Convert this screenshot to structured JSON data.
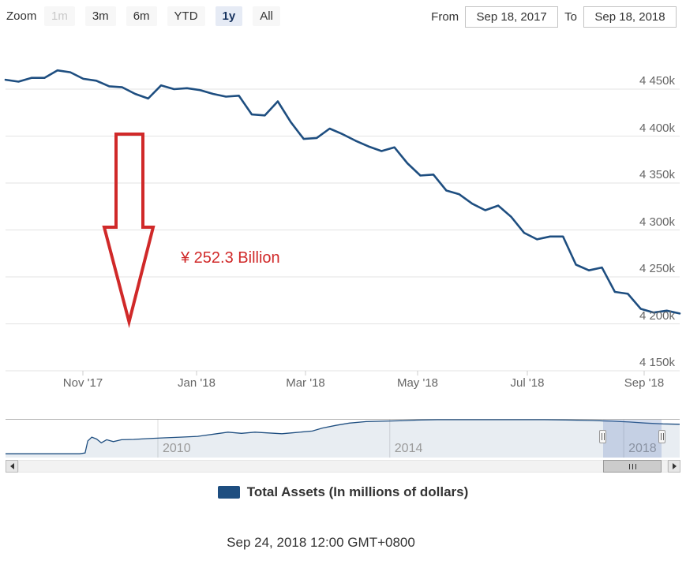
{
  "toolbar": {
    "zoom_label": "Zoom",
    "buttons": [
      {
        "label": "1m",
        "state": "disabled"
      },
      {
        "label": "3m",
        "state": "normal"
      },
      {
        "label": "6m",
        "state": "normal"
      },
      {
        "label": "YTD",
        "state": "normal"
      },
      {
        "label": "1y",
        "state": "selected"
      },
      {
        "label": "All",
        "state": "normal"
      }
    ],
    "from_label": "From",
    "from_value": "Sep 18, 2017",
    "to_label": "To",
    "to_value": "Sep 18, 2018"
  },
  "annotation": {
    "text": "¥ 252.3 Billion",
    "arrow": "red-down-arrow"
  },
  "legend": {
    "label": "Total Assets (In millions of dollars)"
  },
  "footer": {
    "timestamp": "Sep 24, 2018 12:00 GMT+0800"
  },
  "colors": {
    "series": "#1e4e80",
    "navigator_fill": "rgba(30,78,128,0.10)",
    "grid": "#e3e3e3",
    "tick": "#cccccc",
    "nav_border": "#b0b0b0",
    "nav_grid": "#dddddd",
    "annotation_red": "#d02929",
    "axis_text": "#666666",
    "nav_text": "#9a9a9a"
  },
  "chart_data": [
    {
      "type": "line",
      "role": "main",
      "series_name": "Total Assets (In millions of dollars)",
      "x_start": "2017-09-18",
      "x_end": "2018-09-18",
      "interval": "weekly",
      "unit": "values in k (thousands) of millions of dollars, as labeled on y-axis",
      "y_tick_labels": [
        "4 450k",
        "4 400k",
        "4 350k",
        "4 300k",
        "4 250k",
        "4 200k",
        "4 150k"
      ],
      "y_tick_values": [
        4450,
        4400,
        4350,
        4300,
        4250,
        4200,
        4150
      ],
      "ylim": [
        4150,
        4507
      ],
      "x_tick_labels": [
        "Nov '17",
        "Jan '18",
        "Mar '18",
        "May '18",
        "Jul '18",
        "Sep '18"
      ],
      "grid": true,
      "values": [
        4460,
        4458,
        4462,
        4462,
        4470,
        4468,
        4461,
        4459,
        4453,
        4452,
        4445,
        4440,
        4454,
        4450,
        4451,
        4449,
        4445,
        4442,
        4443,
        4423,
        4422,
        4437,
        4415,
        4397,
        4398,
        4408,
        4402,
        4395,
        4389,
        4384,
        4388,
        4371,
        4358,
        4359,
        4342,
        4338,
        4328,
        4321,
        4326,
        4314,
        4297,
        4290,
        4293,
        4293,
        4263,
        4257,
        4260,
        4234,
        4232,
        4216,
        4212,
        4214,
        4211
      ]
    },
    {
      "type": "area",
      "role": "navigator",
      "x_tick_labels": [
        "2010",
        "2014",
        "2018"
      ],
      "x_tick_positions": [
        0.226,
        0.57,
        0.917
      ],
      "unit": "relative height 0-100 (navigator overview of full history, no y-axis shown)",
      "points": [
        [
          0.0,
          10
        ],
        [
          0.11,
          10
        ],
        [
          0.118,
          12
        ],
        [
          0.122,
          44
        ],
        [
          0.128,
          54
        ],
        [
          0.135,
          49
        ],
        [
          0.142,
          39
        ],
        [
          0.15,
          47
        ],
        [
          0.16,
          42
        ],
        [
          0.172,
          47
        ],
        [
          0.19,
          48
        ],
        [
          0.21,
          50
        ],
        [
          0.235,
          52
        ],
        [
          0.26,
          54
        ],
        [
          0.285,
          56
        ],
        [
          0.31,
          62
        ],
        [
          0.33,
          67
        ],
        [
          0.35,
          64
        ],
        [
          0.37,
          67
        ],
        [
          0.39,
          65
        ],
        [
          0.41,
          63
        ],
        [
          0.43,
          66
        ],
        [
          0.455,
          70
        ],
        [
          0.47,
          78
        ],
        [
          0.49,
          85
        ],
        [
          0.51,
          91
        ],
        [
          0.535,
          95
        ],
        [
          0.56,
          96
        ],
        [
          0.585,
          97
        ],
        [
          0.61,
          99
        ],
        [
          0.64,
          100
        ],
        [
          0.68,
          100
        ],
        [
          0.72,
          100
        ],
        [
          0.76,
          100
        ],
        [
          0.8,
          100
        ],
        [
          0.84,
          99
        ],
        [
          0.87,
          98
        ],
        [
          0.9,
          96
        ],
        [
          0.925,
          94
        ],
        [
          0.95,
          91
        ],
        [
          0.975,
          89
        ],
        [
          1.0,
          88
        ]
      ]
    }
  ]
}
